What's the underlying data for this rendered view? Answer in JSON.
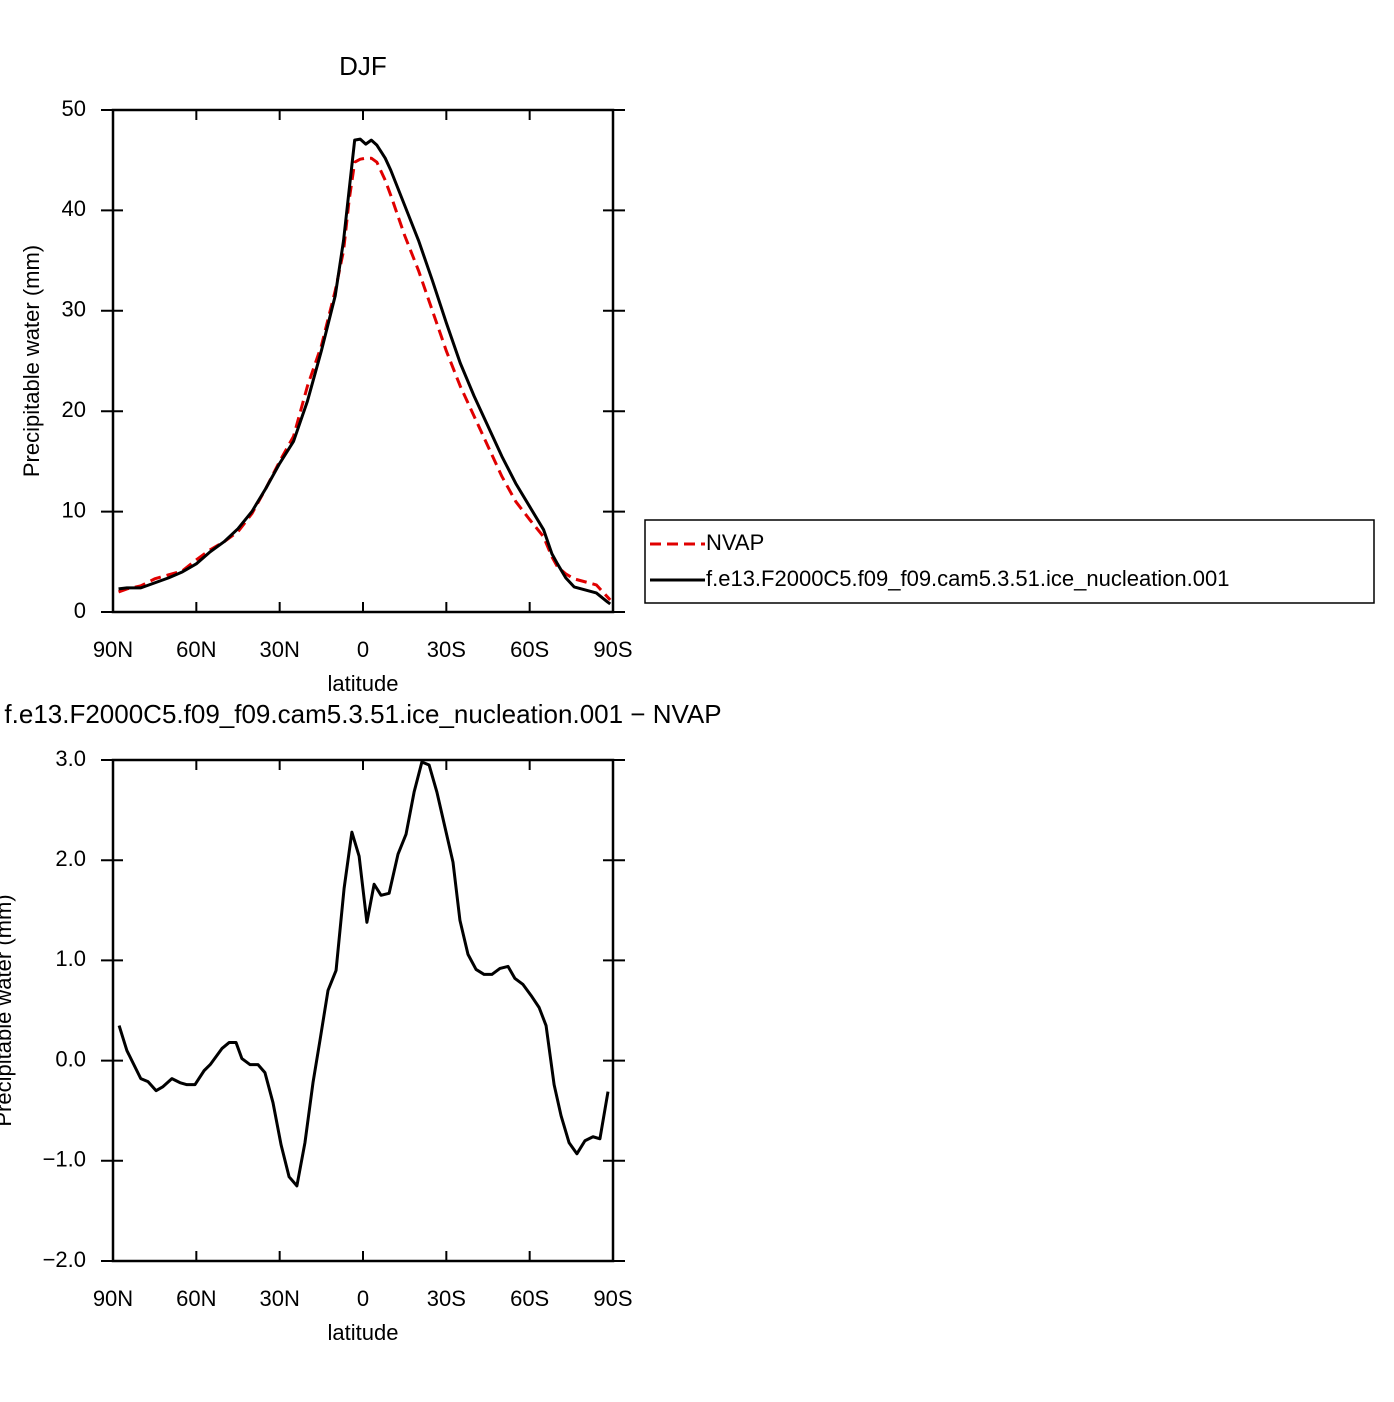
{
  "chart_data": [
    {
      "type": "line",
      "title": "DJF",
      "xlabel": "latitude",
      "ylabel": "Precipitable water (mm)",
      "xlim": [
        90,
        -90
      ],
      "xticks": [
        {
          "value": 90,
          "label": "90N"
        },
        {
          "value": 60,
          "label": "60N"
        },
        {
          "value": 30,
          "label": "30N"
        },
        0,
        {
          "value": -30,
          "label": "30S"
        },
        {
          "value": -60,
          "label": "60S"
        },
        {
          "value": -90,
          "label": "90S"
        }
      ],
      "ylim": [
        0,
        50
      ],
      "yticks": [
        0,
        10,
        20,
        30,
        40,
        50
      ],
      "legend": "outside-right",
      "x": [
        88,
        85,
        80,
        75,
        70,
        65,
        60,
        55,
        50,
        45,
        40,
        35,
        30,
        25,
        20,
        15,
        10,
        7,
        5,
        3,
        1,
        -1,
        -3,
        -5,
        -8,
        -10,
        -15,
        -20,
        -25,
        -30,
        -35,
        -40,
        -45,
        -50,
        -55,
        -60,
        -65,
        -68,
        -70,
        -73,
        -76,
        -80,
        -84,
        -88,
        -89
      ],
      "series": [
        {
          "name": "NVAP",
          "color": "#e00000",
          "style": "dashed",
          "values": [
            2.0,
            2.3,
            2.6,
            3.3,
            3.7,
            4.1,
            5.2,
            6.2,
            7.0,
            8.0,
            9.8,
            12.3,
            15.0,
            17.5,
            22.5,
            26.5,
            32,
            36,
            41,
            44.8,
            45.1,
            45.2,
            45.2,
            44.8,
            43,
            41.5,
            37.5,
            34,
            30,
            26,
            22.5,
            19.5,
            16.5,
            13.5,
            11,
            9.2,
            7.5,
            5.5,
            4.5,
            3.8,
            3.3,
            3.0,
            2.7,
            1.5,
            1.2
          ]
        },
        {
          "name": "f.e13.F2000C5.f09_f09.cam5.3.51.ice_nucleation.001",
          "color": "#000000",
          "style": "solid",
          "values": [
            2.3,
            2.4,
            2.4,
            2.9,
            3.4,
            4.0,
            4.8,
            6.0,
            7.0,
            8.3,
            10.0,
            12.3,
            14.8,
            17.0,
            21.0,
            26.0,
            31.5,
            37,
            42,
            47.0,
            47.1,
            46.6,
            47.0,
            46.5,
            45.2,
            44,
            40.5,
            37,
            33,
            28.8,
            24.8,
            21.5,
            18.5,
            15.5,
            12.8,
            10.5,
            8.2,
            5.8,
            4.8,
            3.4,
            2.5,
            2.2,
            1.9,
            1.0,
            0.8
          ]
        }
      ]
    },
    {
      "type": "line",
      "title": "f.e13.F2000C5.f09_f09.cam5.3.51.ice_nucleation.001 − NVAP",
      "xlabel": "latitude",
      "ylabel": "Precipitable water (mm)",
      "xlim": [
        90,
        -90
      ],
      "xticks": [
        {
          "value": 90,
          "label": "90N"
        },
        {
          "value": 60,
          "label": "60N"
        },
        {
          "value": 30,
          "label": "30N"
        },
        0,
        {
          "value": -30,
          "label": "30S"
        },
        {
          "value": -60,
          "label": "60S"
        },
        {
          "value": -90,
          "label": "90S"
        }
      ],
      "ylim": [
        -2,
        3
      ],
      "yticks": [
        {
          "value": -2,
          "label": "−2.0"
        },
        {
          "value": -1,
          "label": "−1.0"
        },
        {
          "value": 0,
          "label": "0.0"
        },
        {
          "value": 1,
          "label": "1.0"
        },
        {
          "value": 2,
          "label": "2.0"
        },
        {
          "value": 3,
          "label": "3.0"
        }
      ],
      "color": "#000000",
      "x": [
        87.8,
        85,
        80,
        77.4,
        74.5,
        72,
        68.8,
        65.9,
        63.4,
        60.5,
        57.2,
        55,
        50.8,
        48.2,
        45.7,
        43.6,
        40.7,
        37.8,
        35.3,
        32.4,
        29.5,
        26.6,
        23.8,
        20.9,
        18,
        15.5,
        12.6,
        9.7,
        6.8,
        4,
        1.4,
        -1.4,
        -4,
        -6.5,
        -9.4,
        -12.6,
        -15.5,
        -18.4,
        -21.2,
        -23.8,
        -26.6,
        -29.5,
        -32.4,
        -34.9,
        -37.8,
        -40.7,
        -43.6,
        -46.4,
        -49.3,
        -52.2,
        -54.7,
        -57.6,
        -60.5,
        -63.4,
        -65.9,
        -68.8,
        -71.3,
        -74.2,
        -77,
        -79.9,
        -82.8,
        -85.3,
        -88.2
      ],
      "values": [
        0.35,
        0.1,
        -0.18,
        -0.21,
        -0.3,
        -0.26,
        -0.18,
        -0.22,
        -0.24,
        -0.24,
        -0.1,
        -0.04,
        0.12,
        0.18,
        0.18,
        0.02,
        -0.04,
        -0.04,
        -0.12,
        -0.42,
        -0.84,
        -1.16,
        -1.25,
        -0.82,
        -0.22,
        0.2,
        0.7,
        0.9,
        1.72,
        2.28,
        2.04,
        1.38,
        1.76,
        1.65,
        1.67,
        2.06,
        2.26,
        2.68,
        2.98,
        2.95,
        2.68,
        2.33,
        1.98,
        1.4,
        1.06,
        0.91,
        0.86,
        0.86,
        0.92,
        0.94,
        0.82,
        0.76,
        0.65,
        0.53,
        0.35,
        -0.24,
        -0.55,
        -0.82,
        -0.93,
        -0.8,
        -0.76,
        -0.78,
        -0.31
      ]
    }
  ]
}
